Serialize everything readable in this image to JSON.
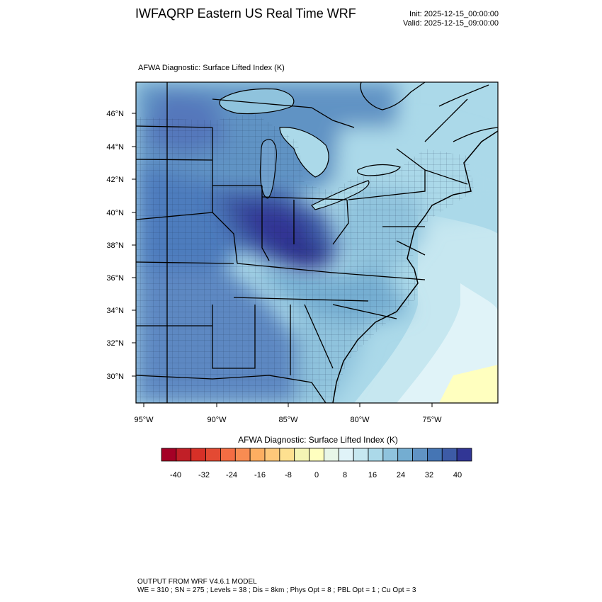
{
  "header": {
    "title": "IWFAQRP Eastern US Real Time WRF",
    "init": "Init: 2025-12-15_00:00:00",
    "valid": "Valid: 2025-12-15_09:00:00"
  },
  "map": {
    "subtitle": "AFWA Diagnostic: Surface Lifted Index   (K)",
    "lat_labels": [
      "46°N",
      "44°N",
      "42°N",
      "40°N",
      "38°N",
      "36°N",
      "34°N",
      "32°N",
      "30°N"
    ],
    "lon_labels": [
      "95°W",
      "90°W",
      "85°W",
      "80°W",
      "75°W"
    ]
  },
  "colorbar": {
    "title": "AFWA Diagnostic: Surface Lifted Index  (K)",
    "tick_labels": [
      "-40",
      "-32",
      "-24",
      "-16",
      "-8",
      "0",
      "8",
      "16",
      "24",
      "32",
      "40"
    ],
    "colors": [
      "#a50026",
      "#c11f27",
      "#d73027",
      "#e34a33",
      "#f46d43",
      "#f88c52",
      "#fdae61",
      "#fec87a",
      "#fee090",
      "#f4f4b4",
      "#ffffbf",
      "#e8f6e8",
      "#e0f3f8",
      "#c6e7f0",
      "#abd9e9",
      "#8fc3dd",
      "#74add1",
      "#6093c4",
      "#4575b4",
      "#3d5ba6",
      "#313695"
    ]
  },
  "footer": {
    "line1": "OUTPUT FROM WRF V4.6.1 MODEL",
    "line2": "WE = 310 ; SN = 275 ; Levels = 38 ; Dis = 8km ; Phys Opt = 8 ; PBL Opt = 1 ; Cu Opt = 3"
  }
}
